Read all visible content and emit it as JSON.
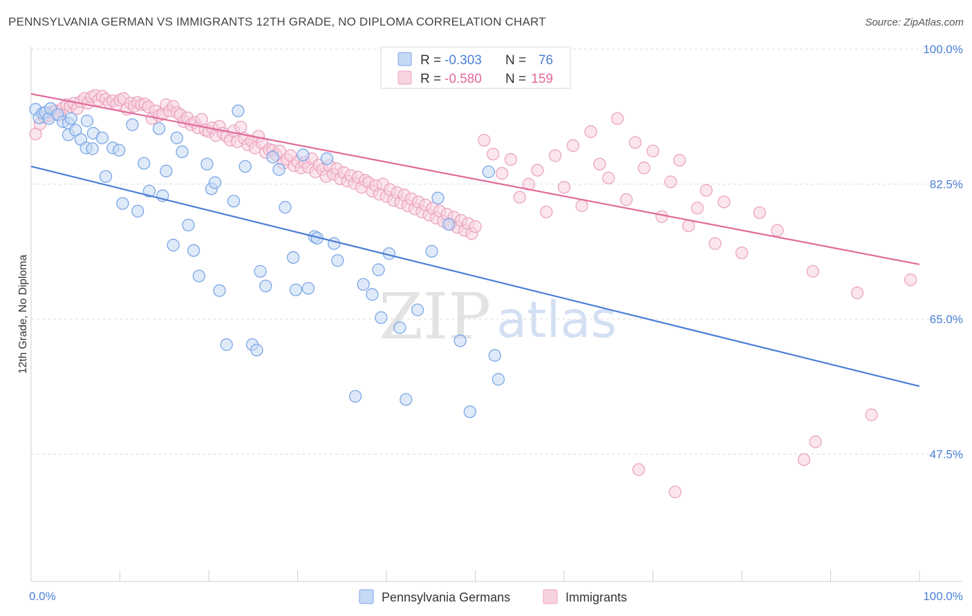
{
  "header": {
    "title": "PENNSYLVANIA GERMAN VS IMMIGRANTS 12TH GRADE, NO DIPLOMA CORRELATION CHART",
    "source": "Source: ZipAtlas.com"
  },
  "watermark": {
    "zip": "ZIP",
    "atlas": "atlas"
  },
  "stats_box": {
    "r_label": "R =",
    "n_label": "N =",
    "rows": [
      {
        "r": "-0.303",
        "n": "76"
      },
      {
        "r": "-0.580",
        "n": "159"
      }
    ]
  },
  "chart_data": {
    "type": "scatter",
    "title": "PENNSYLVANIA GERMAN VS IMMIGRANTS 12TH GRADE, NO DIPLOMA CORRELATION CHART",
    "xlabel": "",
    "ylabel": "12th Grade, No Diploma",
    "xlim": [
      0,
      100
    ],
    "ylim": [
      31,
      101
    ],
    "x_tick_labels": [
      "0.0%",
      "100.0%"
    ],
    "y_ticks": [
      47.5,
      65.0,
      82.5,
      100.0
    ],
    "y_tick_labels": [
      "47.5%",
      "65.0%",
      "82.5%",
      "100.0%"
    ],
    "grid": true,
    "legend_position": "bottom-center",
    "colors": {
      "pennsylvania_germans": "#4a7fd6",
      "immigrants": "#e0699a"
    },
    "series": [
      {
        "name": "Pennsylvania Germans",
        "color": "#4a7fd6",
        "stroke": "#7aa6e6",
        "fill": "#c5d8f4",
        "trend": {
          "x": [
            0,
            100
          ],
          "y": [
            84.8,
            56.3
          ]
        },
        "points": [
          [
            0.5,
            92.2
          ],
          [
            0.9,
            91.1
          ],
          [
            1.3,
            91.7
          ],
          [
            1.6,
            91.8
          ],
          [
            2.0,
            91.0
          ],
          [
            2.2,
            92.3
          ],
          [
            3.0,
            91.5
          ],
          [
            3.6,
            90.6
          ],
          [
            4.2,
            90.4
          ],
          [
            4.5,
            91.0
          ],
          [
            4.2,
            88.9
          ],
          [
            5.0,
            89.5
          ],
          [
            5.6,
            88.3
          ],
          [
            6.2,
            87.2
          ],
          [
            6.3,
            90.7
          ],
          [
            6.9,
            87.1
          ],
          [
            7.0,
            89.1
          ],
          [
            8.0,
            88.5
          ],
          [
            8.4,
            83.5
          ],
          [
            9.2,
            87.2
          ],
          [
            9.9,
            86.9
          ],
          [
            10.3,
            80.0
          ],
          [
            11.4,
            90.2
          ],
          [
            12.0,
            79.0
          ],
          [
            12.7,
            85.2
          ],
          [
            13.3,
            81.6
          ],
          [
            14.4,
            89.7
          ],
          [
            14.8,
            81.0
          ],
          [
            15.2,
            84.2
          ],
          [
            16.4,
            88.5
          ],
          [
            17.0,
            86.7
          ],
          [
            17.7,
            77.2
          ],
          [
            16.0,
            74.6
          ],
          [
            18.3,
            73.9
          ],
          [
            18.9,
            70.6
          ],
          [
            19.8,
            85.1
          ],
          [
            20.3,
            81.9
          ],
          [
            20.7,
            82.7
          ],
          [
            21.2,
            68.7
          ],
          [
            22.0,
            61.7
          ],
          [
            22.8,
            80.3
          ],
          [
            23.3,
            92.0
          ],
          [
            24.1,
            84.8
          ],
          [
            24.9,
            61.7
          ],
          [
            25.4,
            61.0
          ],
          [
            25.8,
            71.2
          ],
          [
            26.4,
            69.3
          ],
          [
            27.2,
            86.0
          ],
          [
            27.9,
            84.4
          ],
          [
            28.6,
            79.5
          ],
          [
            29.5,
            73.0
          ],
          [
            29.8,
            68.8
          ],
          [
            30.6,
            86.3
          ],
          [
            31.2,
            69.0
          ],
          [
            31.9,
            75.7
          ],
          [
            32.2,
            75.5
          ],
          [
            33.3,
            85.8
          ],
          [
            34.1,
            74.8
          ],
          [
            34.5,
            72.6
          ],
          [
            36.5,
            55.0
          ],
          [
            37.4,
            69.5
          ],
          [
            38.4,
            68.2
          ],
          [
            39.1,
            71.4
          ],
          [
            39.4,
            65.2
          ],
          [
            40.3,
            73.5
          ],
          [
            41.5,
            63.9
          ],
          [
            42.2,
            54.6
          ],
          [
            43.5,
            66.2
          ],
          [
            45.1,
            73.8
          ],
          [
            45.8,
            80.7
          ],
          [
            47.0,
            77.3
          ],
          [
            48.3,
            62.2
          ],
          [
            49.4,
            53.0
          ],
          [
            51.5,
            84.1
          ],
          [
            52.2,
            60.3
          ],
          [
            52.6,
            57.2
          ]
        ]
      },
      {
        "name": "Immigrants",
        "color": "#e0699a",
        "stroke": "#eba3bf",
        "fill": "#f7d2df",
        "trend": {
          "x": [
            0,
            100
          ],
          "y": [
            94.2,
            72.1
          ]
        },
        "points": [
          [
            0.5,
            89.0
          ],
          [
            1.0,
            90.3
          ],
          [
            1.5,
            91.2
          ],
          [
            2.0,
            91.4
          ],
          [
            2.4,
            91.9
          ],
          [
            2.8,
            92.0
          ],
          [
            3.2,
            91.5
          ],
          [
            3.6,
            92.4
          ],
          [
            4.0,
            92.8
          ],
          [
            4.4,
            92.6
          ],
          [
            4.8,
            93.0
          ],
          [
            5.2,
            92.3
          ],
          [
            5.6,
            93.2
          ],
          [
            6.0,
            93.6
          ],
          [
            6.4,
            93.0
          ],
          [
            6.8,
            93.8
          ],
          [
            7.2,
            94.0
          ],
          [
            7.6,
            93.4
          ],
          [
            8.0,
            93.9
          ],
          [
            8.4,
            93.5
          ],
          [
            8.8,
            93.0
          ],
          [
            9.2,
            93.3
          ],
          [
            9.6,
            92.8
          ],
          [
            10.0,
            93.4
          ],
          [
            10.4,
            93.6
          ],
          [
            10.8,
            92.2
          ],
          [
            11.2,
            93.0
          ],
          [
            11.6,
            92.6
          ],
          [
            12.0,
            93.1
          ],
          [
            12.4,
            92.8
          ],
          [
            12.8,
            92.9
          ],
          [
            13.2,
            92.5
          ],
          [
            13.6,
            91.0
          ],
          [
            14.0,
            92.0
          ],
          [
            14.4,
            91.4
          ],
          [
            14.8,
            91.6
          ],
          [
            15.2,
            92.8
          ],
          [
            15.6,
            92.0
          ],
          [
            16.0,
            92.6
          ],
          [
            16.4,
            91.8
          ],
          [
            16.8,
            91.5
          ],
          [
            17.2,
            90.6
          ],
          [
            17.6,
            91.1
          ],
          [
            18.0,
            90.2
          ],
          [
            18.4,
            90.5
          ],
          [
            18.8,
            89.8
          ],
          [
            19.2,
            90.9
          ],
          [
            19.6,
            89.5
          ],
          [
            20.0,
            89.3
          ],
          [
            20.4,
            89.8
          ],
          [
            20.8,
            88.8
          ],
          [
            21.2,
            90.0
          ],
          [
            21.6,
            89.1
          ],
          [
            22.0,
            88.7
          ],
          [
            22.4,
            88.2
          ],
          [
            22.8,
            89.4
          ],
          [
            23.2,
            88.0
          ],
          [
            23.6,
            89.9
          ],
          [
            24.0,
            88.4
          ],
          [
            24.4,
            87.6
          ],
          [
            24.8,
            88.1
          ],
          [
            25.2,
            87.2
          ],
          [
            25.6,
            88.7
          ],
          [
            26.0,
            87.8
          ],
          [
            26.4,
            86.6
          ],
          [
            26.8,
            87.0
          ],
          [
            27.2,
            86.9
          ],
          [
            27.6,
            86.3
          ],
          [
            28.0,
            86.8
          ],
          [
            28.4,
            85.2
          ],
          [
            28.8,
            85.7
          ],
          [
            29.2,
            86.2
          ],
          [
            29.6,
            84.9
          ],
          [
            30.0,
            85.4
          ],
          [
            30.4,
            84.6
          ],
          [
            30.8,
            85.3
          ],
          [
            31.2,
            84.7
          ],
          [
            31.6,
            85.8
          ],
          [
            32.0,
            84.1
          ],
          [
            32.4,
            85.0
          ],
          [
            32.8,
            84.4
          ],
          [
            33.2,
            83.5
          ],
          [
            33.6,
            84.9
          ],
          [
            34.0,
            83.8
          ],
          [
            34.4,
            84.5
          ],
          [
            34.8,
            83.2
          ],
          [
            35.2,
            84.0
          ],
          [
            35.6,
            82.9
          ],
          [
            36.0,
            83.6
          ],
          [
            36.4,
            82.6
          ],
          [
            36.8,
            83.4
          ],
          [
            37.2,
            82.1
          ],
          [
            37.6,
            83.0
          ],
          [
            38.0,
            82.7
          ],
          [
            38.4,
            81.6
          ],
          [
            38.8,
            82.3
          ],
          [
            39.2,
            81.2
          ],
          [
            39.6,
            82.5
          ],
          [
            40.0,
            80.9
          ],
          [
            40.4,
            81.8
          ],
          [
            40.8,
            80.4
          ],
          [
            41.2,
            81.4
          ],
          [
            41.6,
            80.1
          ],
          [
            42.0,
            81.1
          ],
          [
            42.4,
            79.7
          ],
          [
            42.8,
            80.6
          ],
          [
            43.2,
            79.3
          ],
          [
            43.6,
            80.2
          ],
          [
            44.0,
            78.9
          ],
          [
            44.4,
            79.8
          ],
          [
            44.8,
            78.5
          ],
          [
            45.2,
            79.4
          ],
          [
            45.6,
            78.1
          ],
          [
            46.0,
            79.0
          ],
          [
            46.4,
            77.7
          ],
          [
            46.8,
            78.6
          ],
          [
            47.2,
            77.3
          ],
          [
            47.6,
            78.2
          ],
          [
            48.0,
            76.9
          ],
          [
            48.4,
            77.8
          ],
          [
            48.8,
            76.5
          ],
          [
            49.2,
            77.4
          ],
          [
            49.6,
            76.1
          ],
          [
            50.0,
            77.0
          ],
          [
            51.0,
            88.2
          ],
          [
            52.0,
            86.4
          ],
          [
            53.0,
            83.9
          ],
          [
            54.0,
            85.7
          ],
          [
            55.0,
            80.8
          ],
          [
            56.0,
            82.5
          ],
          [
            57.0,
            84.3
          ],
          [
            58.0,
            78.9
          ],
          [
            59.0,
            86.2
          ],
          [
            60.0,
            82.1
          ],
          [
            61.0,
            87.5
          ],
          [
            62.0,
            79.7
          ],
          [
            63.0,
            89.3
          ],
          [
            64.0,
            85.1
          ],
          [
            65.0,
            83.3
          ],
          [
            66.0,
            91.0
          ],
          [
            67.0,
            80.5
          ],
          [
            68.0,
            87.9
          ],
          [
            69.0,
            84.6
          ],
          [
            70.0,
            86.8
          ],
          [
            71.0,
            78.3
          ],
          [
            72.0,
            82.8
          ],
          [
            73.0,
            85.6
          ],
          [
            74.0,
            77.1
          ],
          [
            75.0,
            79.4
          ],
          [
            76.0,
            81.7
          ],
          [
            77.0,
            74.8
          ],
          [
            78.0,
            80.2
          ],
          [
            80.0,
            73.6
          ],
          [
            82.0,
            78.8
          ],
          [
            84.0,
            76.5
          ],
          [
            88.0,
            71.2
          ],
          [
            93.0,
            68.4
          ],
          [
            99.0,
            70.1
          ],
          [
            87.0,
            46.8
          ],
          [
            72.5,
            42.6
          ],
          [
            68.4,
            45.5
          ],
          [
            94.6,
            52.6
          ],
          [
            88.3,
            49.1
          ]
        ]
      }
    ]
  },
  "legend": {
    "items": [
      {
        "label": "Pennsylvania Germans"
      },
      {
        "label": "Immigrants"
      }
    ]
  }
}
